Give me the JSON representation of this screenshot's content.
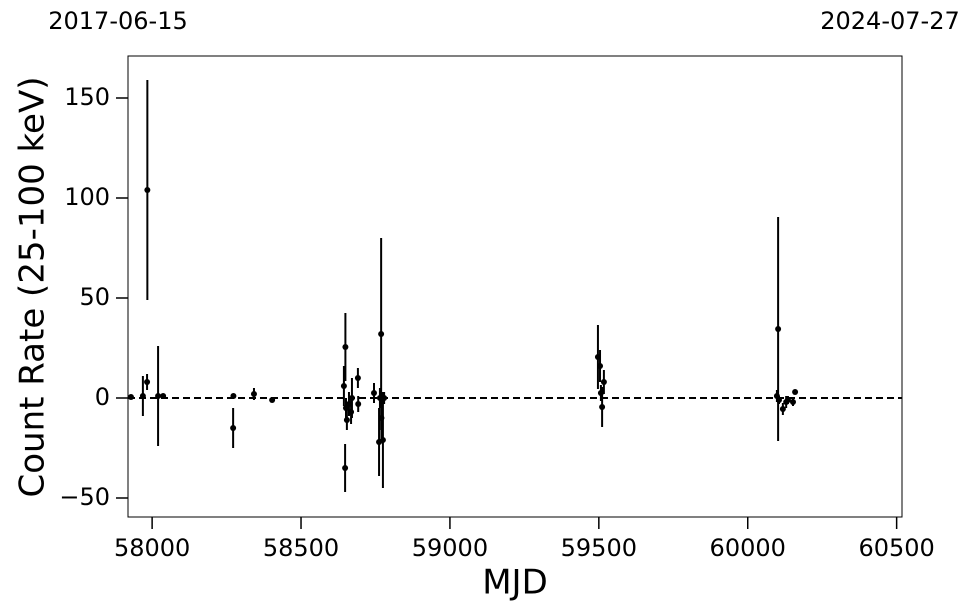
{
  "chart_data": {
    "type": "errorbar",
    "xlabel": "MJD",
    "ylabel": "Count Rate (25-100 keV)",
    "xlim": [
      57919,
      60518
    ],
    "ylim": [
      -59.5,
      171
    ],
    "xticks": [
      58000,
      58500,
      59000,
      59500,
      60000,
      60500
    ],
    "yticks": [
      {
        "value": -50,
        "label": "−50"
      },
      0,
      50,
      100,
      150
    ],
    "x2ticks": [
      {
        "value": 57919,
        "label": "2017-06-15"
      },
      {
        "value": 60518,
        "label": "2024-07-27"
      }
    ],
    "hline": 0,
    "color": "#000000",
    "x": [
      57929,
      57969,
      57983,
      57984,
      58020,
      58037,
      58272,
      58273,
      58342,
      58403,
      58648,
      58649,
      58644,
      58651,
      58654,
      58661,
      58668,
      58671,
      58691,
      58692,
      58745,
      58762,
      58769,
      58770,
      58775,
      58765,
      58772,
      58779,
      59497,
      59504,
      59511,
      59517,
      59507,
      60102,
      60098,
      60105,
      60118,
      60129,
      60135,
      60152,
      60159
    ],
    "values": [
      0.5,
      1,
      8,
      104,
      1,
      1,
      -15,
      1,
      2,
      -1,
      -35,
      25.5,
      6,
      -5,
      -11,
      -3,
      -7,
      0,
      10,
      -3,
      2.5,
      -22,
      32,
      -10,
      -21,
      0,
      1,
      0,
      20.5,
      16,
      -4.5,
      8,
      2.5,
      34.5,
      1,
      -1,
      -5.5,
      -2,
      -1,
      -2,
      3
    ],
    "errors": [
      1,
      10,
      4,
      55,
      25,
      1,
      10,
      1,
      3,
      1,
      12,
      17,
      10,
      5,
      5,
      6,
      6,
      10,
      5,
      4,
      5,
      17,
      48,
      10,
      24,
      5,
      2,
      3,
      16,
      8,
      10,
      6,
      4,
      56,
      3,
      2,
      3,
      3,
      2,
      2,
      1
    ]
  }
}
